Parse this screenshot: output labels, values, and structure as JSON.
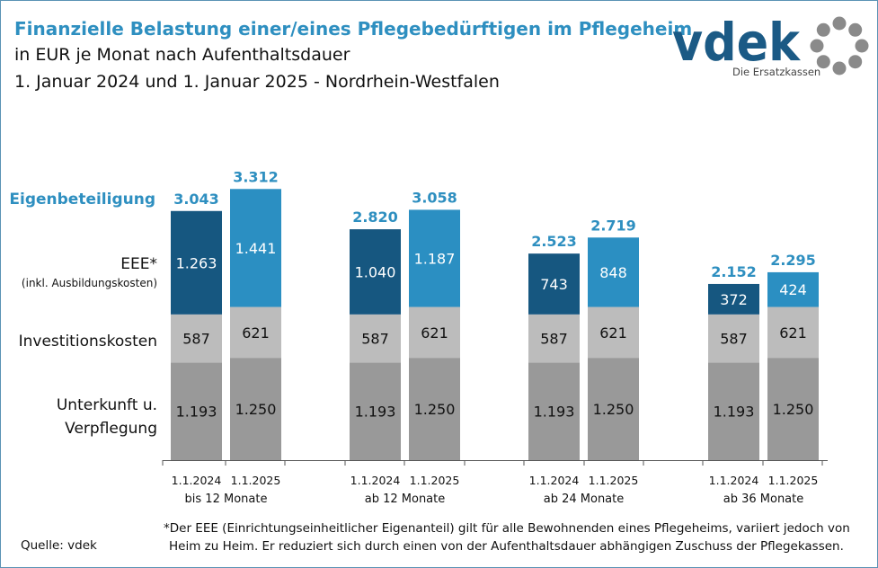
{
  "header": {
    "title_line1": "Finanzielle Belastung einer/eines Pflegebedürftigen im Pflegeheim",
    "title_line2": "in EUR je Monat nach Aufenthaltsdauer",
    "title_line3": "1. Januar 2024 und 1. Januar 2025 - Nordrhein-Westfalen"
  },
  "logo": {
    "wordmark": "vdek",
    "tagline": "Die Ersatzkassen",
    "color": "#1b5a85",
    "ring_color": "#8a8a8a"
  },
  "chart_data": {
    "type": "bar",
    "stacked": true,
    "groups": [
      {
        "label": "bis 12 Monate",
        "bars": [
          {
            "date": "1.1.2024",
            "total": "3.043",
            "segments": {
              "unterkunft": 1193,
              "invest": 587,
              "eee": 1263
            },
            "labels": {
              "unterkunft": "1.193",
              "invest": "587",
              "eee": "1.263"
            }
          },
          {
            "date": "1.1.2025",
            "total": "3.312",
            "segments": {
              "unterkunft": 1250,
              "invest": 621,
              "eee": 1441
            },
            "labels": {
              "unterkunft": "1.250",
              "invest": "621",
              "eee": "1.441"
            }
          }
        ]
      },
      {
        "label": "ab 12 Monate",
        "bars": [
          {
            "date": "1.1.2024",
            "total": "2.820",
            "segments": {
              "unterkunft": 1193,
              "invest": 587,
              "eee": 1040
            },
            "labels": {
              "unterkunft": "1.193",
              "invest": "587",
              "eee": "1.040"
            }
          },
          {
            "date": "1.1.2025",
            "total": "3.058",
            "segments": {
              "unterkunft": 1250,
              "invest": 621,
              "eee": 1187
            },
            "labels": {
              "unterkunft": "1.250",
              "invest": "621",
              "eee": "1.187"
            }
          }
        ]
      },
      {
        "label": "ab 24 Monate",
        "bars": [
          {
            "date": "1.1.2024",
            "total": "2.523",
            "segments": {
              "unterkunft": 1193,
              "invest": 587,
              "eee": 743
            },
            "labels": {
              "unterkunft": "1.193",
              "invest": "587",
              "eee": "743"
            }
          },
          {
            "date": "1.1.2025",
            "total": "2.719",
            "segments": {
              "unterkunft": 1250,
              "invest": 621,
              "eee": 848
            },
            "labels": {
              "unterkunft": "1.250",
              "invest": "621",
              "eee": "848"
            }
          }
        ]
      },
      {
        "label": "ab 36 Monate",
        "bars": [
          {
            "date": "1.1.2024",
            "total": "2.152",
            "segments": {
              "unterkunft": 1193,
              "invest": 587,
              "eee": 372
            },
            "labels": {
              "unterkunft": "1.193",
              "invest": "587",
              "eee": "372"
            }
          },
          {
            "date": "1.1.2025",
            "total": "2.295",
            "segments": {
              "unterkunft": 1250,
              "invest": 621,
              "eee": 424
            },
            "labels": {
              "unterkunft": "1.250",
              "invest": "621",
              "eee": "424"
            }
          }
        ]
      }
    ],
    "series_labels": {
      "eigenbeteiligung": "Eigenbeteiligung",
      "eee": "EEE*",
      "eee_sub": "(inkl. Ausbildungskosten)",
      "invest": "Investitionskosten",
      "unterkunft_1": "Unterkunft u.",
      "unterkunft_2": "Verpflegung"
    },
    "colors": {
      "eee_2024": "#165780",
      "eee_2025": "#2b8fc2",
      "invest": "#bcbcbc",
      "unterkunft": "#999999",
      "total_label": "#2e8fc0",
      "axis": "#555555"
    },
    "legend": "left"
  },
  "footer": {
    "footnote_line1": "*Der EEE (Einrichtungseinheitlicher Eigenanteil) gilt für alle Bewohnenden eines Pflegeheims, variiert jedoch von",
    "footnote_line2": "Heim zu Heim. Er reduziert sich durch einen von der Aufenthaltsdauer abhängigen Zuschuss der Pflegekassen.",
    "source": "Quelle: vdek"
  }
}
